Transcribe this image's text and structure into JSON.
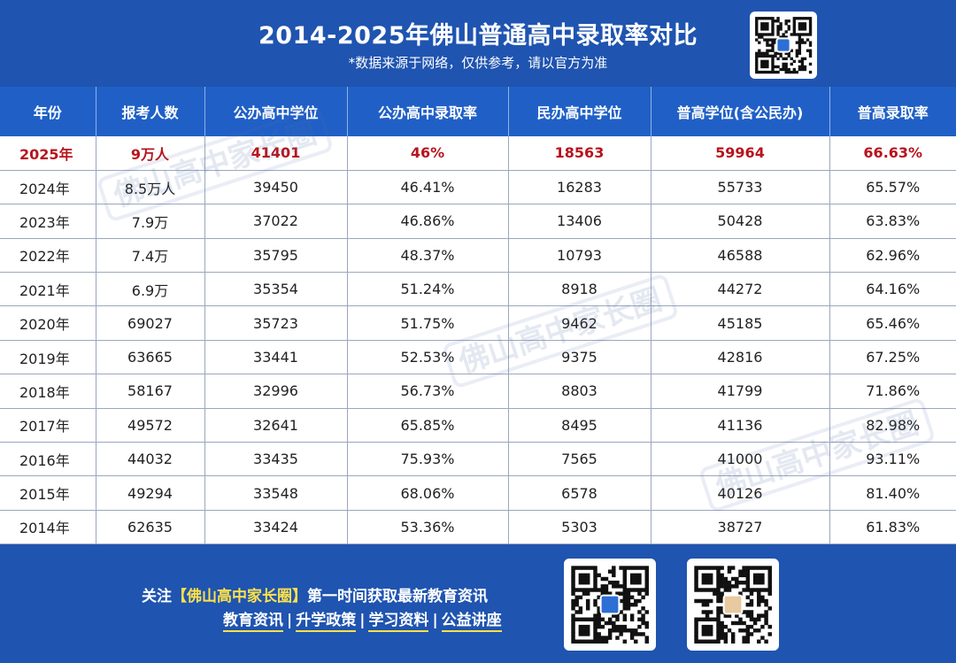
{
  "header": {
    "title": "2014-2025年佛山普通高中录取率对比",
    "subtitle": "*数据来源于网络，仅供参考，请以官方为准"
  },
  "watermark": "佛山高中家长圈",
  "chart_data": {
    "type": "table",
    "columns": [
      "年份",
      "报考人数",
      "公办高中学位",
      "公办高中录取率",
      "民办高中学位",
      "普高学位(含公民办)",
      "普高录取率"
    ],
    "rows": [
      [
        "2025年",
        "9万人",
        "41401",
        "46%",
        "18563",
        "59964",
        "66.63%"
      ],
      [
        "2024年",
        "8.5万人",
        "39450",
        "46.41%",
        "16283",
        "55733",
        "65.57%"
      ],
      [
        "2023年",
        "7.9万",
        "37022",
        "46.86%",
        "13406",
        "50428",
        "63.83%"
      ],
      [
        "2022年",
        "7.4万",
        "35795",
        "48.37%",
        "10793",
        "46588",
        "62.96%"
      ],
      [
        "2021年",
        "6.9万",
        "35354",
        "51.24%",
        "8918",
        "44272",
        "64.16%"
      ],
      [
        "2020年",
        "69027",
        "35723",
        "51.75%",
        "9462",
        "45185",
        "65.46%"
      ],
      [
        "2019年",
        "63665",
        "33441",
        "52.53%",
        "9375",
        "42816",
        "67.25%"
      ],
      [
        "2018年",
        "58167",
        "32996",
        "56.73%",
        "8803",
        "41799",
        "71.86%"
      ],
      [
        "2017年",
        "49572",
        "32641",
        "65.85%",
        "8495",
        "41136",
        "82.98%"
      ],
      [
        "2016年",
        "44032",
        "33435",
        "75.93%",
        "7565",
        "41000",
        "93.11%"
      ],
      [
        "2015年",
        "49294",
        "33548",
        "68.06%",
        "6578",
        "40126",
        "81.40%"
      ],
      [
        "2014年",
        "62635",
        "33424",
        "53.36%",
        "5303",
        "38727",
        "61.83%"
      ]
    ],
    "highlight_row": 0,
    "highlight_color": "#b8141d",
    "header_color": "#2060c6"
  },
  "footer": {
    "follow_prefix": "关注",
    "brand": "【佛山高中家长圈】",
    "follow_suffix": "第一时间获取最新教育资讯",
    "links": [
      "教育资讯",
      "升学政策",
      "学习资料",
      "公益讲座"
    ],
    "separator": "|"
  },
  "icons": [
    "qr-code-icon",
    "qr-code-icon",
    "qr-code-icon"
  ]
}
